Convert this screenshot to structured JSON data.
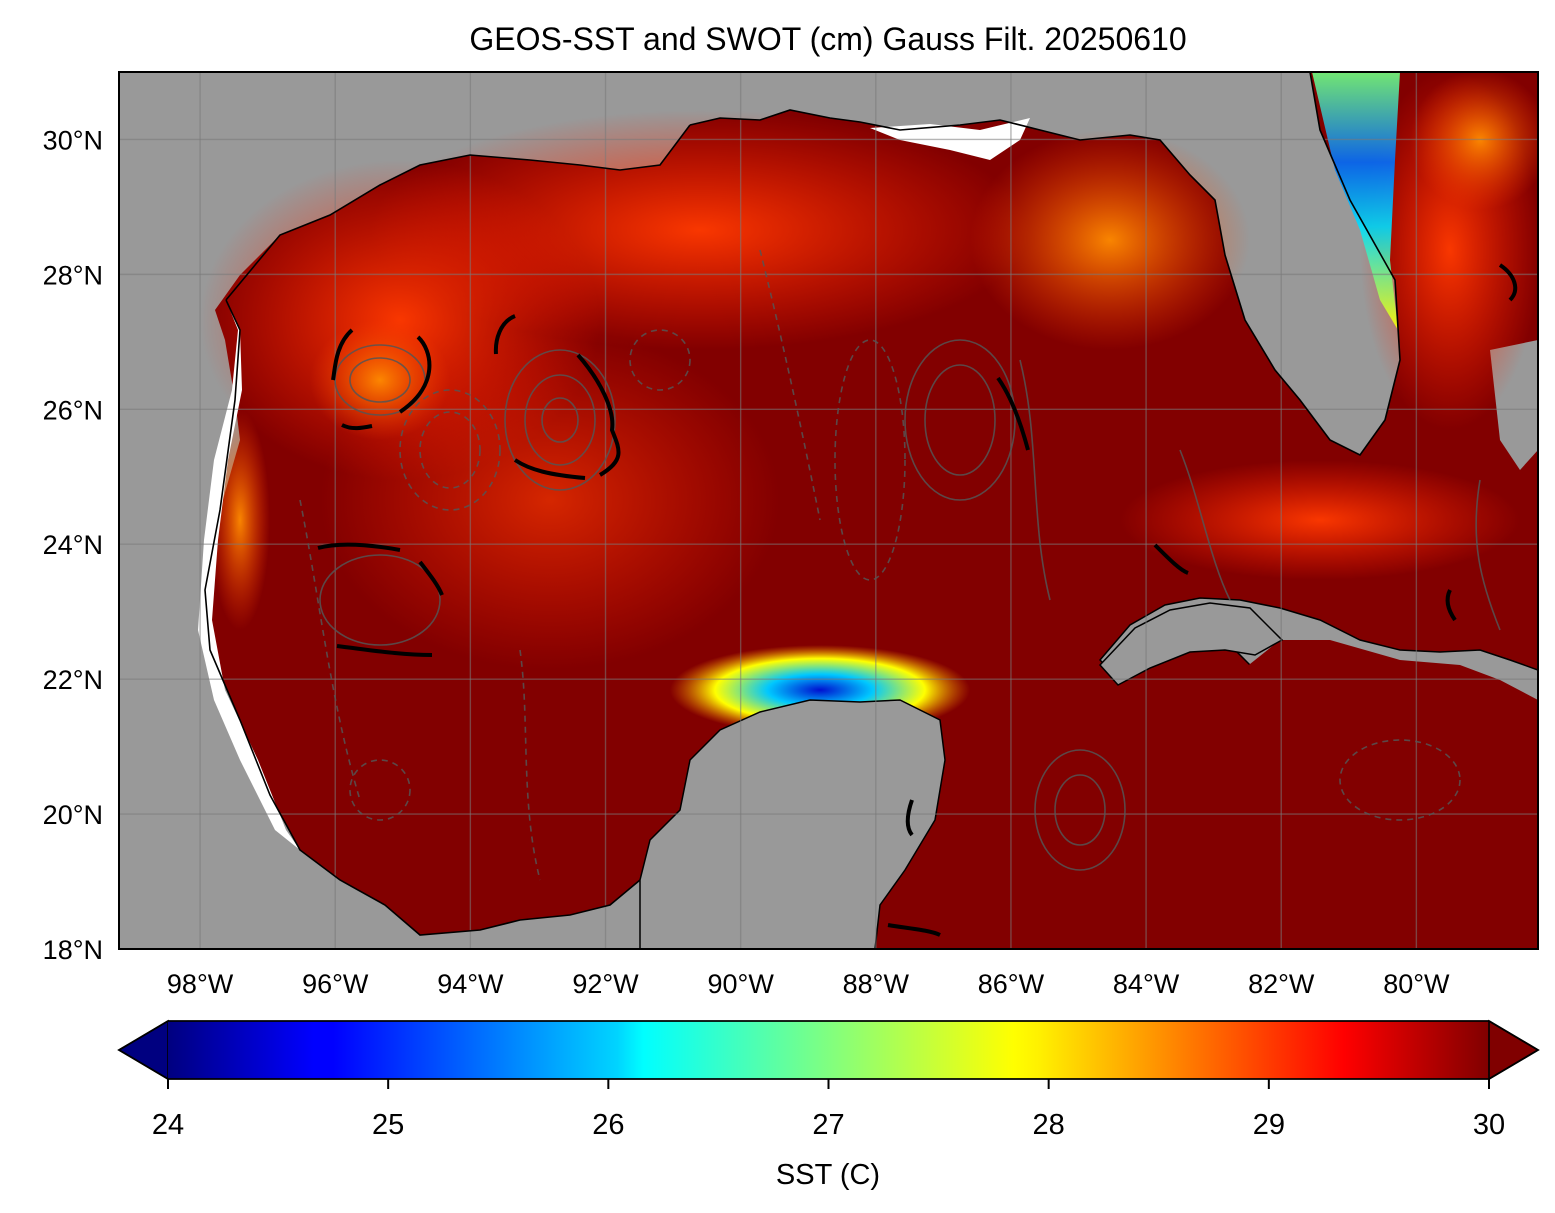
{
  "title": "GEOS-SST  and SWOT (cm) Gauss Filt. 20250610",
  "map": {
    "extent": {
      "lon_min": -99.2,
      "lon_max": -78.2,
      "lat_min": 18.0,
      "lat_max": 31.0
    },
    "lat_ticks": [
      {
        "value": 30,
        "label": "30°N"
      },
      {
        "value": 28,
        "label": "28°N"
      },
      {
        "value": 26,
        "label": "26°N"
      },
      {
        "value": 24,
        "label": "24°N"
      },
      {
        "value": 22,
        "label": "22°N"
      },
      {
        "value": 20,
        "label": "20°N"
      },
      {
        "value": 18,
        "label": "18°N"
      }
    ],
    "lon_ticks": [
      {
        "value": -98,
        "label": "98°W"
      },
      {
        "value": -96,
        "label": "96°W"
      },
      {
        "value": -94,
        "label": "94°W"
      },
      {
        "value": -92,
        "label": "92°W"
      },
      {
        "value": -90,
        "label": "90°W"
      },
      {
        "value": -88,
        "label": "88°W"
      },
      {
        "value": -86,
        "label": "86°W"
      },
      {
        "value": -84,
        "label": "84°W"
      },
      {
        "value": -82,
        "label": "82°W"
      },
      {
        "value": -80,
        "label": "80°W"
      }
    ],
    "colors": {
      "land": "#999999",
      "sea_warm": "#800000",
      "grid": "#7a7a7a",
      "contour": "#555555"
    }
  },
  "colorbar": {
    "label": "SST (C)",
    "vmin": 24,
    "vmax": 30,
    "extend": "both",
    "colormap": "jet",
    "ticks": [
      {
        "value": 24,
        "label": "24"
      },
      {
        "value": 25,
        "label": "25"
      },
      {
        "value": 26,
        "label": "26"
      },
      {
        "value": 27,
        "label": "27"
      },
      {
        "value": 28,
        "label": "28"
      },
      {
        "value": 29,
        "label": "29"
      },
      {
        "value": 30,
        "label": "30"
      }
    ]
  }
}
